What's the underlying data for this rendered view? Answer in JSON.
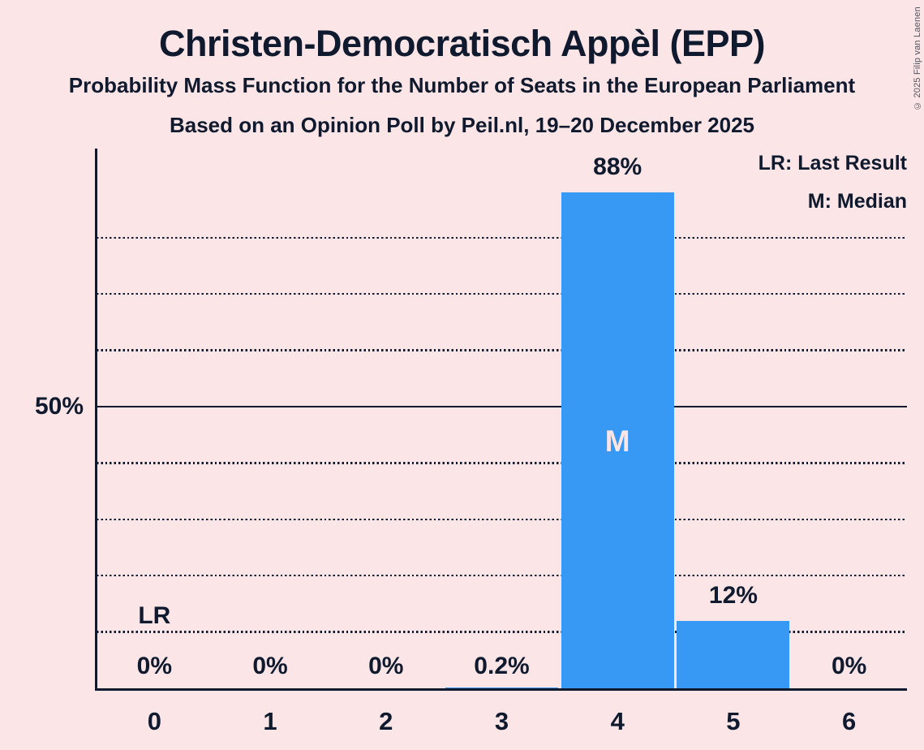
{
  "colors": {
    "background": "#fbe5e6",
    "text": "#101a2e",
    "bar": "#3899f4",
    "copyright_text": "#54545e"
  },
  "header": {
    "title": "Christen-Democratisch Appèl (EPP)",
    "subtitle1": "Probability Mass Function for the Number of Seats in the European Parliament",
    "subtitle2": "Based on an Opinion Poll by Peil.nl, 19–20 December 2025",
    "copyright": "© 2025 Filip van Laenen"
  },
  "legend": {
    "last_result": "LR: Last Result",
    "median": "M: Median"
  },
  "chart_data": {
    "type": "bar",
    "title": "Christen-Democratisch Appèl (EPP)",
    "xlabel": "Number of seats",
    "ylabel": "50%",
    "categories": [
      "0",
      "1",
      "2",
      "3",
      "4",
      "5",
      "6"
    ],
    "values": [
      0,
      0,
      0,
      0.2,
      88,
      12,
      0
    ],
    "value_labels": [
      "0%",
      "0%",
      "0%",
      "0.2%",
      "88%",
      "12%",
      "0%"
    ],
    "ylim": [
      0,
      95.8
    ],
    "y_solid_line_percent": 50,
    "y_dotted_gridlines_percent": [
      10,
      20,
      30,
      40,
      60,
      70,
      80
    ],
    "grid": "dotted horizontal",
    "legend_position": "top-right",
    "median": {
      "seat_index": 4,
      "label": "M"
    },
    "last_result": {
      "seat_index": 0,
      "label": "LR"
    }
  }
}
